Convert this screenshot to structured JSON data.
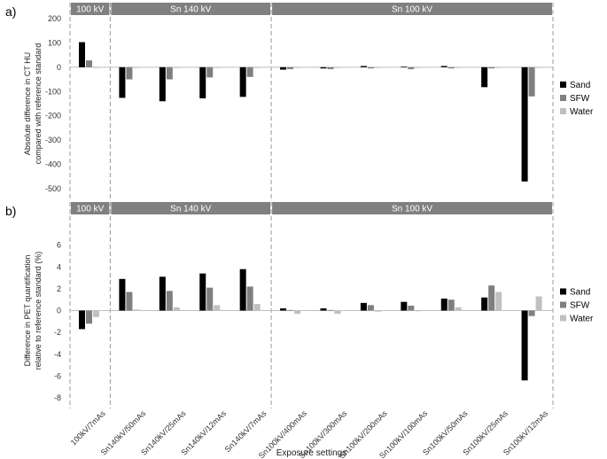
{
  "chart_data": [
    {
      "panel_label": "a)",
      "type": "bar",
      "ylabel_lines": [
        "Absolute difference in CT HU",
        "compared with reference standard"
      ],
      "ylim": [
        -500,
        200
      ],
      "yticks": [
        200,
        100,
        0,
        -100,
        -200,
        -300,
        -400,
        -500
      ],
      "groups": [
        {
          "label": "100 kV",
          "start": 0,
          "end": 1
        },
        {
          "label": "Sn 140 kV",
          "start": 1,
          "end": 5
        },
        {
          "label": "Sn 100 kV",
          "start": 5,
          "end": 12
        }
      ],
      "categories": [
        "100kV/7mAs",
        "Sn140kV/50mAs",
        "Sn140kV/25mAs",
        "Sn140kV/12mAs",
        "Sn140kV/7mAs",
        "Sn100kV/400mAs",
        "Sn100kV/300mAs",
        "Sn100kV/200mAs",
        "Sn100kV/100mAs",
        "Sn100kV/50mAs",
        "Sn100kV/25mAs",
        "Sn100kV/12mAs"
      ],
      "series": [
        {
          "name": "Sand",
          "color": "#000000",
          "values": [
            103,
            -126,
            -140,
            -128,
            -122,
            -10,
            -5,
            5,
            2,
            5,
            -82,
            -470
          ]
        },
        {
          "name": "SFW",
          "color": "#7f7f7f",
          "values": [
            28,
            -50,
            -50,
            -42,
            -40,
            -8,
            -8,
            -5,
            -8,
            -5,
            -5,
            -120
          ]
        },
        {
          "name": "Water",
          "color": "#c0c0c0",
          "values": [
            -3,
            -3,
            -3,
            -3,
            -3,
            -2,
            -2,
            -2,
            -2,
            -2,
            -2,
            -2
          ]
        }
      ],
      "legend_position": "right"
    },
    {
      "panel_label": "b)",
      "type": "bar",
      "ylabel_lines": [
        "Difference in PET quantification",
        "relative to reference standard (%)"
      ],
      "ylim": [
        -8,
        8
      ],
      "yticks": [
        6,
        4,
        2,
        0,
        -2,
        -4,
        -6,
        -8
      ],
      "groups": [
        {
          "label": "100 kV",
          "start": 0,
          "end": 1
        },
        {
          "label": "Sn 140 kV",
          "start": 1,
          "end": 5
        },
        {
          "label": "Sn 100 kV",
          "start": 5,
          "end": 12
        }
      ],
      "categories": [
        "100kV/7mAs",
        "Sn140kV/50mAs",
        "Sn140kV/25mAs",
        "Sn140kV/12mAs",
        "Sn140kV/7mAs",
        "Sn100kV/400mAs",
        "Sn100kV/300mAs",
        "Sn100kV/200mAs",
        "Sn100kV/100mAs",
        "Sn100kV/50mAs",
        "Sn100kV/25mAs",
        "Sn100kV/12mAs"
      ],
      "series": [
        {
          "name": "Sand",
          "color": "#000000",
          "values": [
            -1.7,
            2.9,
            3.1,
            3.4,
            3.8,
            0.2,
            0.2,
            0.7,
            0.8,
            1.1,
            1.2,
            -6.4
          ]
        },
        {
          "name": "SFW",
          "color": "#7f7f7f",
          "values": [
            -1.2,
            1.7,
            1.8,
            2.1,
            2.2,
            0.05,
            0.05,
            0.5,
            0.45,
            1.0,
            2.3,
            -0.5
          ]
        },
        {
          "name": "Water",
          "color": "#c0c0c0",
          "values": [
            -0.6,
            0.1,
            0.3,
            0.5,
            0.6,
            -0.3,
            -0.3,
            -0.1,
            0.0,
            0.3,
            1.7,
            1.3
          ]
        }
      ],
      "legend_position": "right"
    }
  ],
  "xlabel": "Exposure settings"
}
